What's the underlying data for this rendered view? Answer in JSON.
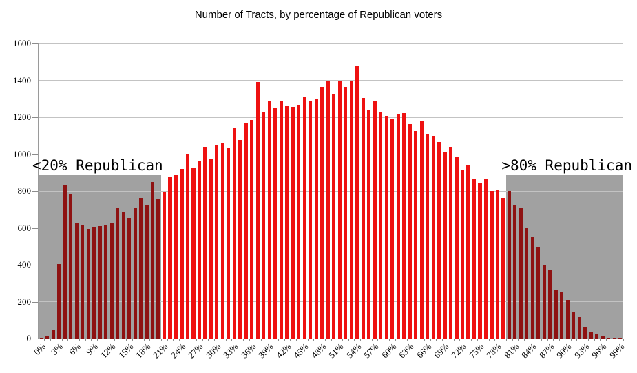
{
  "title": "Number of Tracts, by percentage of Republican voters",
  "colors": {
    "bar_bright": "#ee1111",
    "bar_shaded": "#8e1212",
    "shade_box": "#a1a1a1",
    "gridline": "#c3c3c3",
    "text": "#000000"
  },
  "annotations": [
    {
      "text": "<20% Republican",
      "side": "left"
    },
    {
      "text": ">80% Republican",
      "side": "right"
    }
  ],
  "chart_data": {
    "type": "bar",
    "title": "Number of Tracts, by percentage of Republican voters",
    "xlabel": "",
    "ylabel": "",
    "ylim": [
      0,
      1600
    ],
    "y_ticks": [
      0,
      200,
      400,
      600,
      800,
      1000,
      1200,
      1400,
      1600
    ],
    "x_tick_labels": [
      "0%",
      "3%",
      "6%",
      "9%",
      "12%",
      "15%",
      "18%",
      "21%",
      "24%",
      "27%",
      "30%",
      "33%",
      "36%",
      "39%",
      "42%",
      "45%",
      "48%",
      "51%",
      "54%",
      "57%",
      "60%",
      "63%",
      "66%",
      "69%",
      "72%",
      "75%",
      "78%",
      "81%",
      "84%",
      "87%",
      "90%",
      "93%",
      "96%",
      "99%"
    ],
    "x_label_step": 3,
    "categories_are_percent_republican": "0% through 99%, one bar per 1%",
    "values": [
      5,
      15,
      50,
      405,
      830,
      785,
      625,
      612,
      595,
      607,
      610,
      617,
      625,
      710,
      687,
      655,
      712,
      763,
      725,
      850,
      758,
      795,
      878,
      886,
      920,
      1000,
      926,
      962,
      1040,
      976,
      1048,
      1062,
      1032,
      1145,
      1075,
      1165,
      1185,
      1390,
      1225,
      1285,
      1250,
      1291,
      1260,
      1256,
      1268,
      1312,
      1291,
      1297,
      1365,
      1400,
      1325,
      1400,
      1366,
      1396,
      1475,
      1303,
      1240,
      1285,
      1229,
      1206,
      1188,
      1219,
      1222,
      1163,
      1125,
      1181,
      1106,
      1098,
      1065,
      1013,
      1038,
      986,
      916,
      941,
      866,
      841,
      866,
      801,
      807,
      761,
      799,
      720,
      708,
      602,
      549,
      496,
      399,
      369,
      265,
      253,
      209,
      147,
      116,
      60,
      38,
      25,
      10,
      4,
      3,
      5
    ],
    "shaded_regions": [
      {
        "label": "<20% Republican",
        "from_index": 0,
        "to_index": 21,
        "top_value": 886
      },
      {
        "label": ">80% Republican",
        "from_index": 80,
        "to_index": 100,
        "top_value": 886
      }
    ],
    "grid": true,
    "legend": "none"
  }
}
